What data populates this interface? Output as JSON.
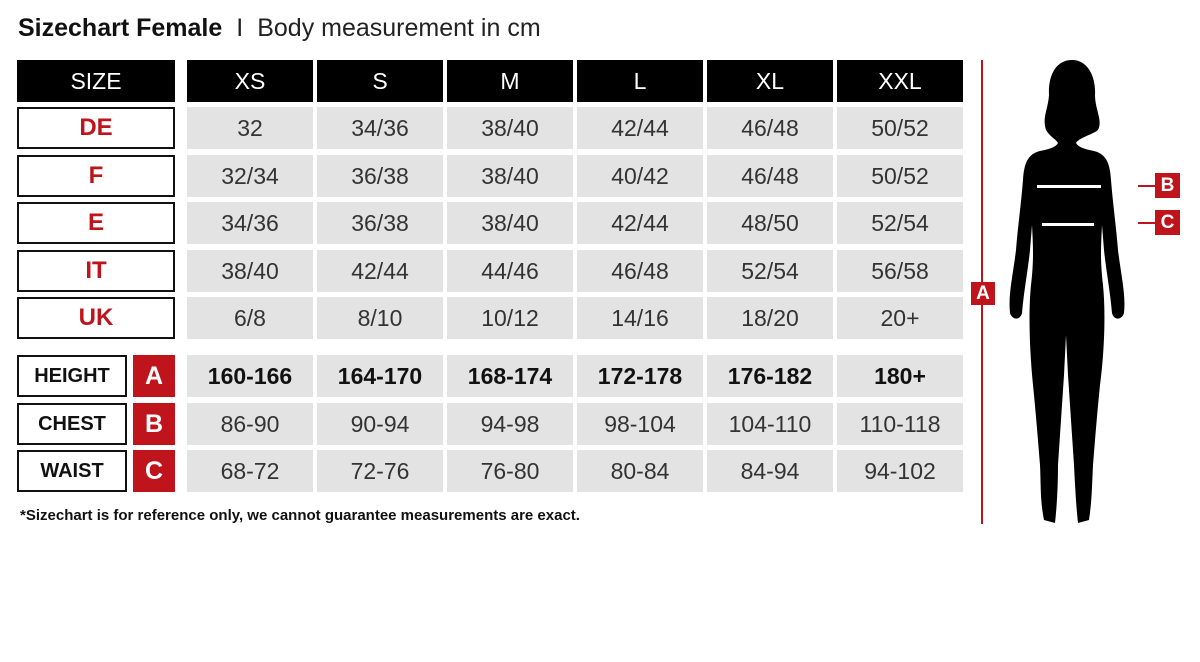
{
  "title": {
    "main": "Sizechart Female",
    "separator": "I",
    "sub": "Body measurement in cm"
  },
  "header": {
    "label": "SIZE",
    "sizes": [
      "XS",
      "S",
      "M",
      "L",
      "XL",
      "XXL"
    ]
  },
  "conversion_rows": [
    {
      "label": "DE",
      "values": [
        "32",
        "34/36",
        "38/40",
        "42/44",
        "46/48",
        "50/52"
      ]
    },
    {
      "label": "F",
      "values": [
        "32/34",
        "36/38",
        "38/40",
        "40/42",
        "46/48",
        "50/52"
      ]
    },
    {
      "label": "E",
      "values": [
        "34/36",
        "36/38",
        "38/40",
        "42/44",
        "48/50",
        "52/54"
      ]
    },
    {
      "label": "IT",
      "values": [
        "38/40",
        "42/44",
        "44/46",
        "46/48",
        "52/54",
        "56/58"
      ]
    },
    {
      "label": "UK",
      "values": [
        "6/8",
        "8/10",
        "10/12",
        "14/16",
        "18/20",
        "20+"
      ]
    }
  ],
  "measurement_rows": [
    {
      "label": "HEIGHT",
      "letter": "A",
      "values": [
        "160-166",
        "164-170",
        "168-174",
        "172-178",
        "176-182",
        "180+"
      ]
    },
    {
      "label": "CHEST",
      "letter": "B",
      "values": [
        "86-90",
        "90-94",
        "94-98",
        "98-104",
        "104-110",
        "110-118"
      ]
    },
    {
      "label": "WAIST",
      "letter": "C",
      "values": [
        "68-72",
        "72-76",
        "76-80",
        "80-84",
        "84-94",
        "94-102"
      ]
    }
  ],
  "footnote": "*Sizechart is for reference only, we cannot guarantee measurements are exact.",
  "figure": {
    "height_marker": "A",
    "chest_marker": "B",
    "waist_marker": "C"
  },
  "colors": {
    "accent": "#c0141c",
    "header_bg": "#000000",
    "cell_bg": "#e3e3e3"
  }
}
